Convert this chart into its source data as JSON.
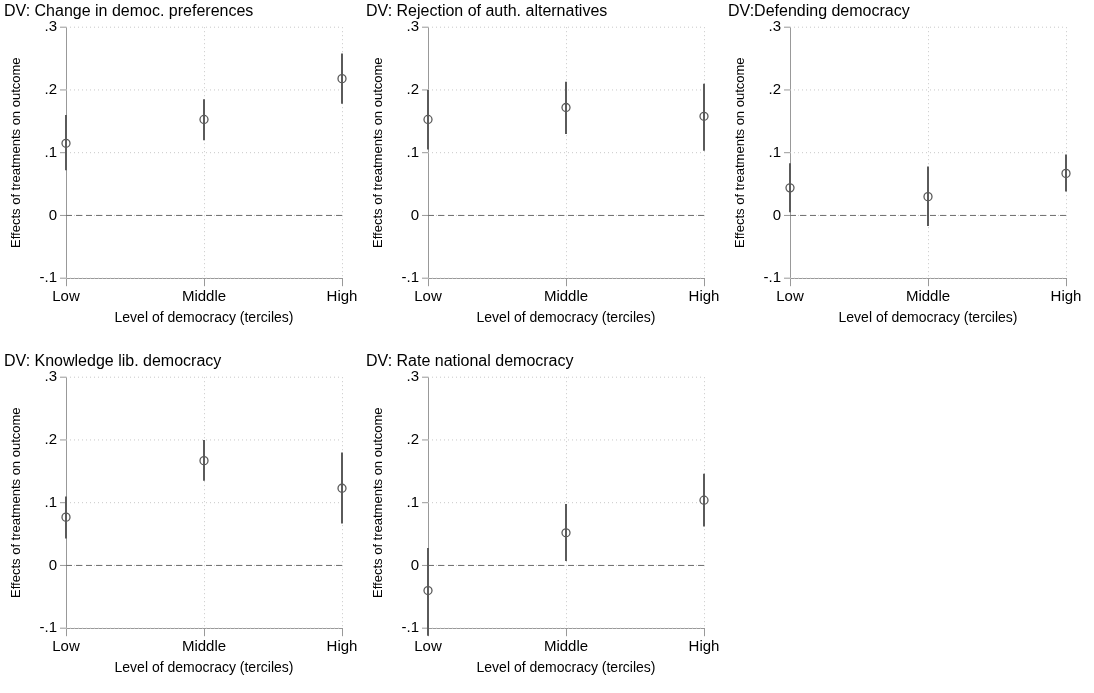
{
  "chart_data": [
    {
      "type": "scatter",
      "title": "DV: Change in democ. preferences",
      "xlabel": "Level of democracy (terciles)",
      "ylabel": "Effects of treatments on outcome",
      "categories": [
        "Low",
        "Middle",
        "High"
      ],
      "values": [
        0.115,
        0.153,
        0.218
      ],
      "errors": [
        [
          0.072,
          0.16
        ],
        [
          0.12,
          0.185
        ],
        [
          0.178,
          0.258
        ]
      ],
      "color": "#5a5a5a",
      "marker": "circle",
      "ylim": [
        -0.1,
        0.3
      ],
      "yticks": [
        {
          "value": -0.1,
          "label": "-.1"
        },
        {
          "value": 0,
          "label": "0"
        },
        {
          "value": 0.1,
          "label": ".1"
        },
        {
          "value": 0.2,
          "label": ".2"
        },
        {
          "value": 0.3,
          "label": ".3"
        }
      ],
      "grid": true,
      "ref_lines": [
        {
          "axis": "y",
          "value": 0,
          "line_style": "dashed",
          "color": "#6e6e6e"
        }
      ]
    },
    {
      "type": "scatter",
      "title": "DV: Rejection of auth. alternatives",
      "xlabel": "Level of democracy (terciles)",
      "ylabel": "Effects of treatments on outcome",
      "categories": [
        "Low",
        "Middle",
        "High"
      ],
      "values": [
        0.153,
        0.172,
        0.158
      ],
      "errors": [
        [
          0.105,
          0.2
        ],
        [
          0.13,
          0.213
        ],
        [
          0.103,
          0.21
        ]
      ],
      "color": "#5a5a5a",
      "marker": "circle",
      "ylim": [
        -0.1,
        0.3
      ],
      "yticks": [
        {
          "value": -0.1,
          "label": "-.1"
        },
        {
          "value": 0,
          "label": "0"
        },
        {
          "value": 0.1,
          "label": ".1"
        },
        {
          "value": 0.2,
          "label": ".2"
        },
        {
          "value": 0.3,
          "label": ".3"
        }
      ],
      "grid": true,
      "ref_lines": [
        {
          "axis": "y",
          "value": 0,
          "line_style": "dashed",
          "color": "#6e6e6e"
        }
      ]
    },
    {
      "type": "scatter",
      "title": "DV:Defending democracy",
      "xlabel": "Level of democracy (terciles)",
      "ylabel": "Effects of treatments on outcome",
      "categories": [
        "Low",
        "Middle",
        "High"
      ],
      "values": [
        0.044,
        0.03,
        0.067
      ],
      "errors": [
        [
          0.005,
          0.083
        ],
        [
          -0.017,
          0.078
        ],
        [
          0.038,
          0.097
        ]
      ],
      "color": "#5a5a5a",
      "marker": "circle",
      "ylim": [
        -0.1,
        0.3
      ],
      "yticks": [
        {
          "value": -0.1,
          "label": "-.1"
        },
        {
          "value": 0,
          "label": "0"
        },
        {
          "value": 0.1,
          "label": ".1"
        },
        {
          "value": 0.2,
          "label": ".2"
        },
        {
          "value": 0.3,
          "label": ".3"
        }
      ],
      "grid": true,
      "ref_lines": [
        {
          "axis": "y",
          "value": 0,
          "line_style": "dashed",
          "color": "#6e6e6e"
        }
      ]
    },
    {
      "type": "scatter",
      "title": "DV: Knowledge lib. democracy",
      "xlabel": "Level of democracy (terciles)",
      "ylabel": "Effects of treatments on outcome",
      "categories": [
        "Low",
        "Middle",
        "High"
      ],
      "values": [
        0.077,
        0.167,
        0.123
      ],
      "errors": [
        [
          0.043,
          0.11
        ],
        [
          0.135,
          0.2
        ],
        [
          0.067,
          0.18
        ]
      ],
      "color": "#5a5a5a",
      "marker": "circle",
      "ylim": [
        -0.1,
        0.3
      ],
      "yticks": [
        {
          "value": -0.1,
          "label": "-.1"
        },
        {
          "value": 0,
          "label": "0"
        },
        {
          "value": 0.1,
          "label": ".1"
        },
        {
          "value": 0.2,
          "label": ".2"
        },
        {
          "value": 0.3,
          "label": ".3"
        }
      ],
      "grid": true,
      "ref_lines": [
        {
          "axis": "y",
          "value": 0,
          "line_style": "dashed",
          "color": "#6e6e6e"
        }
      ]
    },
    {
      "type": "scatter",
      "title": "DV: Rate national democracy",
      "xlabel": "Level of democracy (terciles)",
      "ylabel": "Effects of treatments on outcome",
      "categories": [
        "Low",
        "Middle",
        "High"
      ],
      "values": [
        -0.04,
        0.052,
        0.104
      ],
      "errors": [
        [
          -0.112,
          0.028
        ],
        [
          0.007,
          0.098
        ],
        [
          0.062,
          0.146
        ]
      ],
      "color": "#5a5a5a",
      "marker": "circle",
      "ylim": [
        -0.1,
        0.3
      ],
      "yticks": [
        {
          "value": -0.1,
          "label": "-.1"
        },
        {
          "value": 0,
          "label": "0"
        },
        {
          "value": 0.1,
          "label": ".1"
        },
        {
          "value": 0.2,
          "label": ".2"
        },
        {
          "value": 0.3,
          "label": ".3"
        }
      ],
      "grid": true,
      "ref_lines": [
        {
          "axis": "y",
          "value": 0,
          "line_style": "dashed",
          "color": "#6e6e6e"
        }
      ]
    }
  ]
}
